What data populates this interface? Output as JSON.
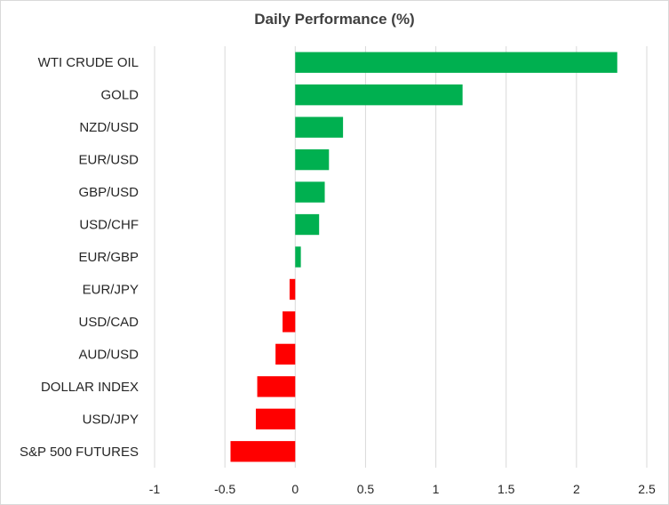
{
  "chart_data": {
    "type": "bar",
    "orientation": "horizontal",
    "title": "Daily Performance  (%)",
    "categories": [
      "WTI CRUDE OIL",
      "GOLD",
      "NZD/USD",
      "EUR/USD",
      "GBP/USD",
      "USD/CHF",
      "EUR/GBP",
      "EUR/JPY",
      "USD/CAD",
      "AUD/USD",
      "DOLLAR INDEX",
      "USD/JPY",
      "S&P 500 FUTURES"
    ],
    "values": [
      2.29,
      1.19,
      0.34,
      0.24,
      0.21,
      0.17,
      0.04,
      -0.04,
      -0.09,
      -0.14,
      -0.27,
      -0.28,
      -0.46
    ],
    "xlim": [
      -1,
      2.5
    ],
    "xticks": [
      "-1",
      "-0.5",
      "0",
      "0.5",
      "1",
      "1.5",
      "2",
      "2.5"
    ],
    "grid": true,
    "colors": {
      "positive": "#00b050",
      "negative": "#ff0000"
    }
  }
}
